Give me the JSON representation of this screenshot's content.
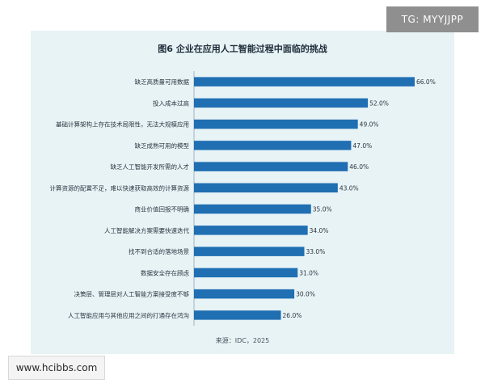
{
  "chart_data": {
    "type": "bar",
    "orientation": "horizontal",
    "title": "图6 企业在应用人工智能过程中面临的挑战",
    "categories": [
      "缺乏高质量可用数据",
      "投入成本过高",
      "基础计算架构上存在技术局限性，无法大规模应用",
      "缺乏成熟可用的模型",
      "缺乏人工智能开发所需的人才",
      "计算资源的配置不足，难以快速获取高效的计算资源",
      "商业价值回报不明确",
      "人工智能解决方案需要快速迭代",
      "找不到合适的落地场景",
      "数据安全存在顾虑",
      "决策层、管理层对人工智能方案接受度不够",
      "人工智能应用与其他应用之间的打通存在鸿沟"
    ],
    "values": [
      66.0,
      52.0,
      49.0,
      47.0,
      46.0,
      43.0,
      35.0,
      34.0,
      33.0,
      31.0,
      30.0,
      26.0
    ],
    "value_labels": [
      "66.0%",
      "52.0%",
      "49.0%",
      "47.0%",
      "46.0%",
      "43.0%",
      "35.0%",
      "34.0%",
      "33.0%",
      "31.0%",
      "30.0%",
      "26.0%"
    ],
    "xlim": [
      0,
      66
    ],
    "grid": false,
    "legend": "none",
    "bar_color": "#1f6fb2",
    "axis_color": "#9fb3bf",
    "source": "来源：IDC，2025"
  },
  "watermarks": {
    "top_right": "TG: MYYJJPP",
    "bottom_left": "www.hcibbs.com"
  }
}
